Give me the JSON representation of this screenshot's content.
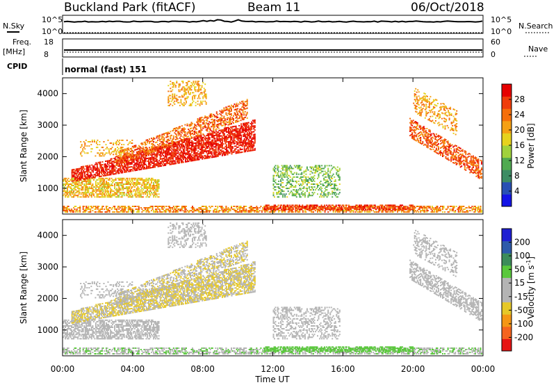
{
  "header": {
    "radar": "Buckland Park (fitACF)",
    "beam": "Beam 11",
    "date": "06/Oct/2018"
  },
  "side_labels": {
    "nsky": "N.Sky",
    "nsearch": "N.Search",
    "freq": "Freq.",
    "freq_unit": "[MHz]",
    "nave": "Nave",
    "cpid": "CPID"
  },
  "noise_panel": {
    "top_tick": "10^5",
    "bottom_tick": "10^0",
    "right_top_tick": "10^5",
    "right_bottom_tick": "10^0"
  },
  "freq_panel": {
    "left_ticks": [
      "18",
      "8"
    ],
    "right_ticks": [
      "60",
      "0"
    ]
  },
  "cpid_text": "normal (fast) 151",
  "colors": {
    "power": [
      "#1414e6",
      "#2850b4",
      "#3c8c64",
      "#50aa50",
      "#a0d23c",
      "#e6d21e",
      "#f5a014",
      "#f56e0a",
      "#f03c0a",
      "#e60000"
    ],
    "velocity": [
      "#1e1ed2",
      "#2d5aaa",
      "#3c8c5a",
      "#5ac83c",
      "#b4b4b4",
      "#b4b4b4",
      "#e6c828",
      "#f59614",
      "#f5641e",
      "#e61414"
    ]
  },
  "chart_data": [
    {
      "type": "heatmap",
      "name": "power",
      "ylabel": "Slant Range [km]",
      "y_ticks": [
        1000,
        2000,
        3000,
        4000
      ],
      "ylim": [
        180,
        4500
      ],
      "xlim": [
        0,
        24
      ],
      "colorbar": {
        "label": "Power [dB]",
        "ticks": [
          "4",
          "8",
          "12",
          "16",
          "20",
          "24",
          "28"
        ],
        "range": [
          0,
          30
        ]
      }
    },
    {
      "type": "heatmap",
      "name": "velocity",
      "ylabel": "Slant Range [km]",
      "y_ticks": [
        1000,
        2000,
        3000,
        4000
      ],
      "ylim": [
        180,
        4500
      ],
      "xlim": [
        0,
        24
      ],
      "xlabel": "Time UT",
      "x_ticks": [
        "00:00",
        "04:00",
        "08:00",
        "12:00",
        "16:00",
        "20:00",
        "00:00"
      ],
      "colorbar": {
        "label": "Velocity [m s-1]",
        "ticks": [
          "200",
          "100",
          "50",
          "15",
          "-15",
          "-50",
          "-100",
          "-200"
        ]
      }
    }
  ]
}
